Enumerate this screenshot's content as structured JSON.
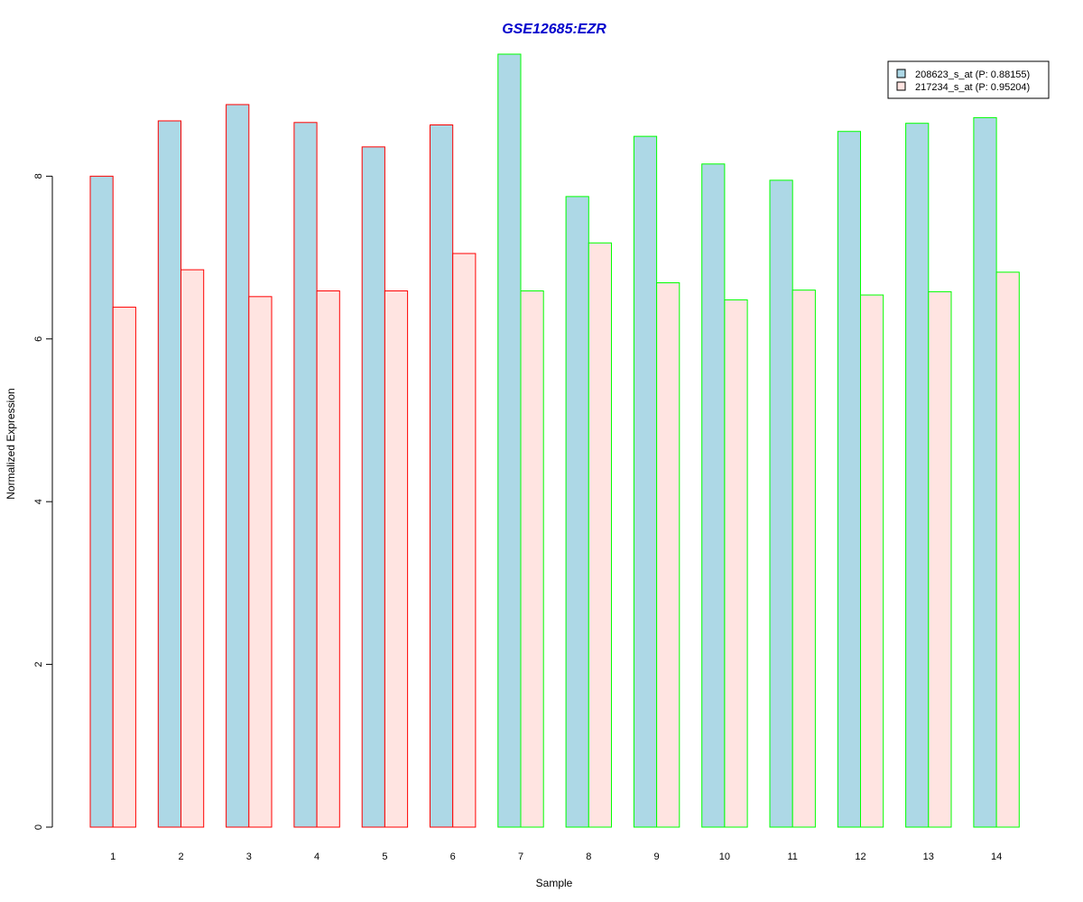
{
  "chart_data": {
    "type": "bar",
    "title": "GSE12685:EZR",
    "xlabel": "Sample",
    "ylabel": "Normalized Expression",
    "ylim": [
      0,
      9.6
    ],
    "yticks": [
      0,
      2,
      4,
      6,
      8
    ],
    "categories": [
      "1",
      "2",
      "3",
      "4",
      "5",
      "6",
      "7",
      "8",
      "9",
      "10",
      "11",
      "12",
      "13",
      "14"
    ],
    "series": [
      {
        "name": "208623_s_at (P: 0.88155)",
        "fill": "#add8e6",
        "values": [
          8.0,
          8.68,
          8.88,
          8.66,
          8.36,
          8.63,
          9.5,
          7.75,
          8.49,
          8.15,
          7.95,
          8.55,
          8.65,
          8.72
        ]
      },
      {
        "name": "217234_s_at (P: 0.95204)",
        "fill": "#ffe4e1",
        "values": [
          6.39,
          6.85,
          6.52,
          6.59,
          6.59,
          7.05,
          6.59,
          7.18,
          6.69,
          6.48,
          6.6,
          6.54,
          6.58,
          6.82
        ]
      }
    ],
    "group_borders": [
      "#ff0000",
      "#ff0000",
      "#ff0000",
      "#ff0000",
      "#ff0000",
      "#ff0000",
      "#00ff00",
      "#00ff00",
      "#00ff00",
      "#00ff00",
      "#00ff00",
      "#00ff00",
      "#00ff00",
      "#00ff00"
    ],
    "title_color": "#0000cc",
    "legend_position": "top-right",
    "grid": false
  }
}
